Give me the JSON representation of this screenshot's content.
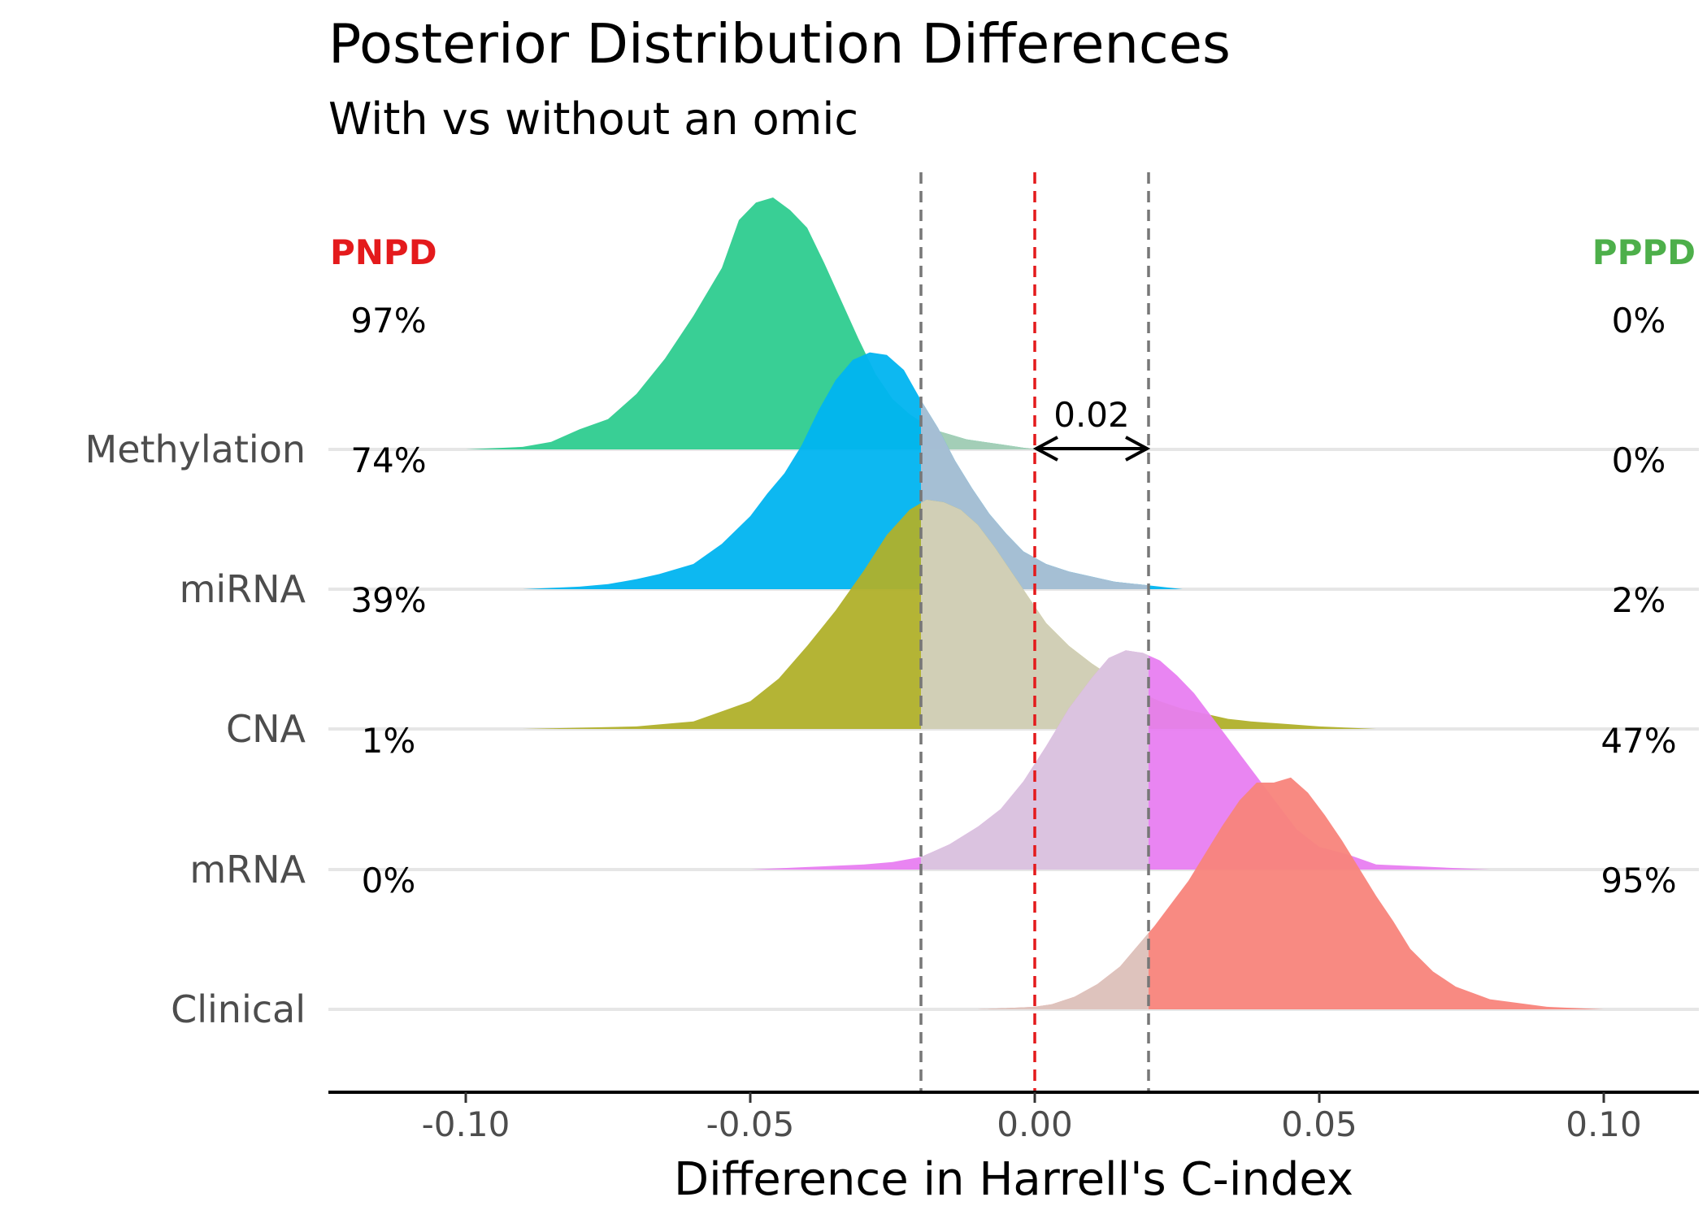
{
  "chart_data": {
    "type": "ridgeline",
    "title": "Posterior Distribution Differences",
    "subtitle": "With vs without an omic",
    "xlabel": "Difference in Harrell's C-index",
    "xlim": [
      -0.124,
      0.117
    ],
    "x_ticks": [
      -0.1,
      -0.05,
      0.0,
      0.05,
      0.1
    ],
    "x_tick_labels": [
      "-0.10",
      "-0.05",
      "0.00",
      "0.05",
      "0.10"
    ],
    "rope": [
      -0.02,
      0.02
    ],
    "rope_label": "0.02",
    "left_region_label": "PNPD",
    "right_region_label": "PPPD",
    "left_region_color": "#e41a1c",
    "right_region_color": "#4daf4a",
    "series": [
      {
        "name": "Methylation",
        "color": "#2ecc8f",
        "rope_color": "#a9cdb8",
        "left_pct": "97%",
        "right_pct": "0%",
        "x": [
          -0.115,
          -0.1,
          -0.09,
          -0.085,
          -0.08,
          -0.075,
          -0.07,
          -0.065,
          -0.06,
          -0.055,
          -0.052,
          -0.049,
          -0.046,
          -0.043,
          -0.04,
          -0.037,
          -0.034,
          -0.031,
          -0.028,
          -0.025,
          -0.022,
          -0.02,
          -0.018,
          -0.015,
          -0.012,
          -0.009,
          -0.006,
          -0.003,
          0.0,
          0.005,
          0.01,
          0.02,
          0.022
        ],
        "y": [
          0.0,
          0.0,
          0.01,
          0.03,
          0.08,
          0.12,
          0.22,
          0.36,
          0.53,
          0.72,
          0.91,
          0.98,
          1.0,
          0.95,
          0.88,
          0.74,
          0.59,
          0.44,
          0.3,
          0.2,
          0.14,
          0.11,
          0.08,
          0.06,
          0.04,
          0.03,
          0.02,
          0.01,
          0.0,
          0.0,
          0.0,
          0.0,
          0.0
        ]
      },
      {
        "name": "miRNA",
        "color": "#00b4f0",
        "rope_color": "#aebfd2",
        "left_pct": "74%",
        "right_pct": "0%",
        "x": [
          -0.09,
          -0.08,
          -0.075,
          -0.07,
          -0.066,
          -0.06,
          -0.055,
          -0.05,
          -0.047,
          -0.044,
          -0.041,
          -0.038,
          -0.035,
          -0.032,
          -0.029,
          -0.026,
          -0.023,
          -0.02,
          -0.017,
          -0.014,
          -0.011,
          -0.008,
          -0.005,
          -0.002,
          0.002,
          0.006,
          0.01,
          0.014,
          0.018,
          0.022,
          0.026
        ],
        "y": [
          0.0,
          0.01,
          0.02,
          0.04,
          0.06,
          0.1,
          0.18,
          0.29,
          0.38,
          0.46,
          0.57,
          0.71,
          0.83,
          0.91,
          0.94,
          0.93,
          0.87,
          0.75,
          0.64,
          0.51,
          0.4,
          0.3,
          0.22,
          0.15,
          0.1,
          0.07,
          0.05,
          0.03,
          0.02,
          0.01,
          0.0
        ]
      },
      {
        "name": "CNA",
        "color": "#b0b02a",
        "rope_color": "#d3d1be",
        "left_pct": "39%",
        "right_pct": "2%",
        "x": [
          -0.09,
          -0.07,
          -0.06,
          -0.05,
          -0.045,
          -0.04,
          -0.035,
          -0.03,
          -0.026,
          -0.022,
          -0.019,
          -0.016,
          -0.013,
          -0.01,
          -0.007,
          -0.004,
          -0.001,
          0.002,
          0.006,
          0.01,
          0.014,
          0.018,
          0.022,
          0.026,
          0.03,
          0.034,
          0.038,
          0.044,
          0.05,
          0.06
        ],
        "y": [
          0.0,
          0.01,
          0.03,
          0.11,
          0.2,
          0.33,
          0.47,
          0.63,
          0.77,
          0.87,
          0.91,
          0.9,
          0.87,
          0.81,
          0.72,
          0.62,
          0.52,
          0.42,
          0.33,
          0.26,
          0.2,
          0.15,
          0.11,
          0.08,
          0.06,
          0.04,
          0.03,
          0.02,
          0.01,
          0.0
        ]
      },
      {
        "name": "mRNA",
        "color": "#e87ef1",
        "rope_color": "#dac6de",
        "left_pct": "1%",
        "right_pct": "47%",
        "x": [
          -0.05,
          -0.04,
          -0.03,
          -0.025,
          -0.02,
          -0.015,
          -0.01,
          -0.006,
          -0.002,
          0.002,
          0.006,
          0.01,
          0.013,
          0.016,
          0.019,
          0.022,
          0.025,
          0.028,
          0.031,
          0.034,
          0.037,
          0.04,
          0.043,
          0.046,
          0.05,
          0.055,
          0.06,
          0.07,
          0.08
        ],
        "y": [
          0.0,
          0.01,
          0.02,
          0.03,
          0.05,
          0.1,
          0.17,
          0.24,
          0.35,
          0.49,
          0.64,
          0.76,
          0.84,
          0.87,
          0.86,
          0.83,
          0.77,
          0.7,
          0.61,
          0.52,
          0.43,
          0.34,
          0.25,
          0.16,
          0.09,
          0.06,
          0.02,
          0.01,
          0.0
        ]
      },
      {
        "name": "Clinical",
        "color": "#f8847b",
        "rope_color": "#dcc6c0",
        "left_pct": "0%",
        "right_pct": "95%",
        "x": [
          -0.01,
          0.0,
          0.003,
          0.007,
          0.011,
          0.015,
          0.018,
          0.021,
          0.024,
          0.027,
          0.03,
          0.033,
          0.036,
          0.039,
          0.042,
          0.045,
          0.048,
          0.051,
          0.054,
          0.057,
          0.06,
          0.063,
          0.066,
          0.07,
          0.074,
          0.08,
          0.09,
          0.1,
          0.11
        ],
        "y": [
          0.0,
          0.01,
          0.02,
          0.05,
          0.1,
          0.17,
          0.25,
          0.33,
          0.42,
          0.51,
          0.62,
          0.73,
          0.83,
          0.9,
          0.9,
          0.92,
          0.86,
          0.77,
          0.67,
          0.56,
          0.45,
          0.35,
          0.24,
          0.15,
          0.09,
          0.04,
          0.01,
          0.0,
          0.0
        ]
      }
    ]
  }
}
